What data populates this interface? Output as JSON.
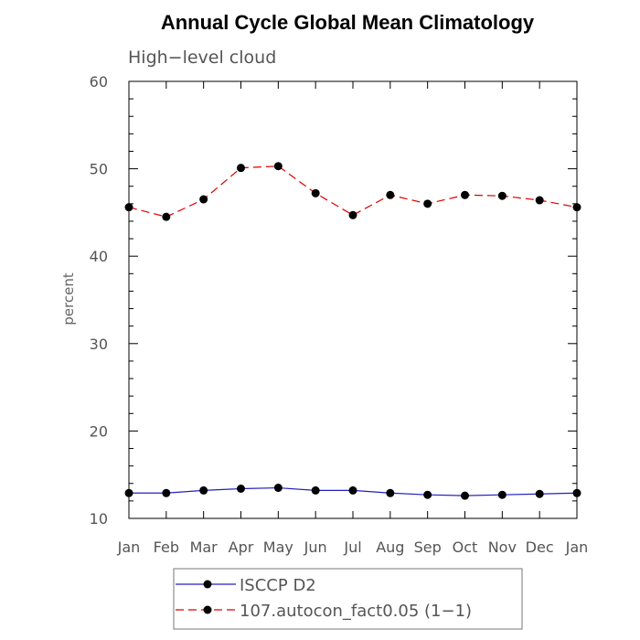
{
  "chart_data": {
    "type": "line",
    "title": "Annual Cycle Global Mean Climatology",
    "subtitle": "High−level cloud",
    "xlabel": "",
    "ylabel": "percent",
    "categories": [
      "Jan",
      "Feb",
      "Mar",
      "Apr",
      "May",
      "Jun",
      "Jul",
      "Aug",
      "Sep",
      "Oct",
      "Nov",
      "Dec",
      "Jan"
    ],
    "ylim": [
      10,
      60
    ],
    "yticks": [
      10,
      20,
      30,
      40,
      50,
      60
    ],
    "legend_position": "bottom",
    "series": [
      {
        "name": "ISCCP D2",
        "color": "#2020c0",
        "dash": "solid",
        "values": [
          12.9,
          12.9,
          13.2,
          13.4,
          13.5,
          13.2,
          13.2,
          12.9,
          12.7,
          12.6,
          12.7,
          12.8,
          12.9
        ]
      },
      {
        "name": "107.autocon_fact0.05 (1−1)",
        "color": "#dd0000",
        "dash": "dashed",
        "values": [
          45.6,
          44.5,
          46.5,
          50.1,
          50.3,
          47.2,
          44.7,
          47.0,
          46.0,
          47.0,
          46.9,
          46.4,
          45.6
        ]
      }
    ]
  }
}
